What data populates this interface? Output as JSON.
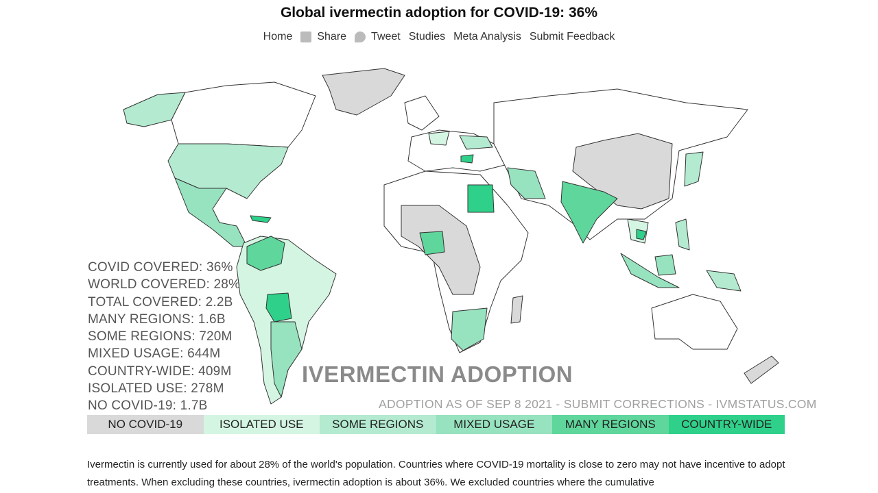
{
  "header": {
    "title": "Global ivermectin adoption for COVID-19: 36%",
    "nav": [
      "Home",
      "Share",
      "Tweet",
      "Studies",
      "Meta Analysis",
      "Submit Feedback"
    ]
  },
  "map": {
    "title": "IVERMECTIN ADOPTION",
    "subtitle": "ADOPTION AS OF SEP 8 2021 - SUBMIT CORRECTIONS - IVMSTATUS.COM",
    "stats": [
      "COVID COVERED: 36%",
      "WORLD COVERED: 28%",
      "TOTAL COVERED: 2.2B",
      "MANY REGIONS: 1.6B",
      "SOME REGIONS: 720M",
      "MIXED USAGE: 644M",
      "COUNTRY-WIDE: 409M",
      "ISOLATED USE: 278M",
      "NO COVID-19: 1.7B"
    ],
    "legend": [
      "NO COVID-19",
      "ISOLATED USE",
      "SOME REGIONS",
      "MIXED USAGE",
      "MANY REGIONS",
      "COUNTRY-WIDE"
    ]
  },
  "body": {
    "paragraph": "Ivermectin is currently used for about 28% of the world's population. Countries where COVID-19 mortality is close to zero may not have incentive to adopt treatments. When excluding these countries, ivermectin adoption is about 36%. We excluded countries where the cumulative"
  }
}
